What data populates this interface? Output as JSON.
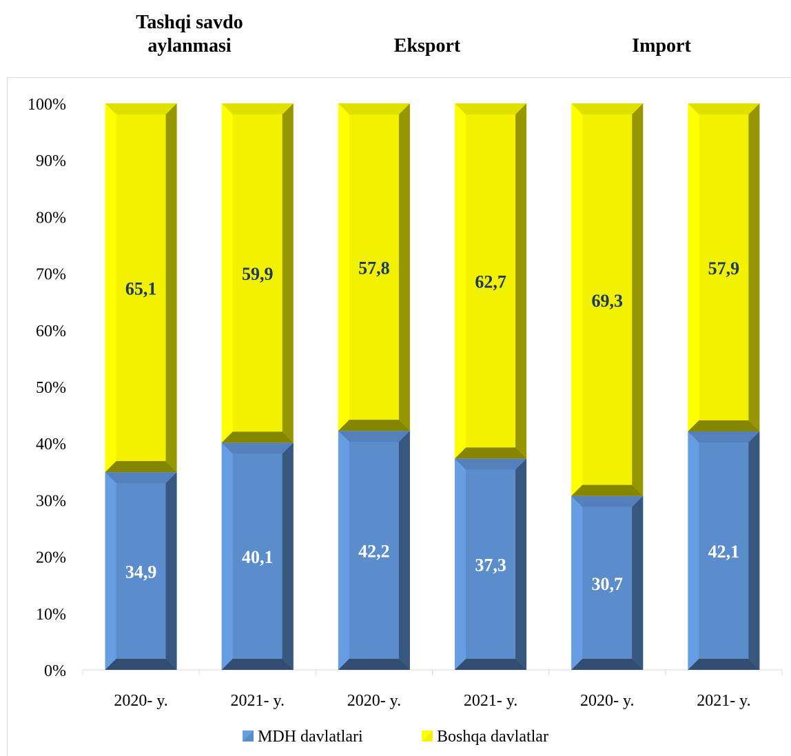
{
  "group_titles": [
    {
      "id": "trade",
      "text": "Tashqi savdo aylanmasi"
    },
    {
      "id": "export",
      "text": "Eksport"
    },
    {
      "id": "import",
      "text": "Import"
    }
  ],
  "chart_data": {
    "type": "bar",
    "stacked": true,
    "percent_stacked": true,
    "categories": [
      "2020- y.",
      "2021- y.",
      "2020- y.",
      "2021- y.",
      "2020- y.",
      "2021- y."
    ],
    "groups": [
      "Tashqi savdo aylanmasi",
      "Tashqi savdo aylanmasi",
      "Eksport",
      "Eksport",
      "Import",
      "Import"
    ],
    "series": [
      {
        "name": "MDH davlatlari",
        "color": "#5b8ccb",
        "labels": [
          "34,9",
          "40,1",
          "42,2",
          "37,3",
          "30,7",
          "42,1"
        ],
        "values": [
          34.9,
          40.1,
          42.2,
          37.3,
          30.7,
          42.1
        ]
      },
      {
        "name": "Boshqa davlatlar",
        "color": "#f2f200",
        "labels": [
          "65,1",
          "59,9",
          "57,8",
          "62,7",
          "69,3",
          "57,9"
        ],
        "values": [
          65.1,
          59.9,
          57.8,
          62.7,
          69.3,
          57.9
        ]
      }
    ],
    "y_ticks": [
      "0%",
      "10%",
      "20%",
      "30%",
      "40%",
      "50%",
      "60%",
      "70%",
      "80%",
      "90%",
      "100%"
    ],
    "ylim": [
      0,
      100
    ],
    "grid": false,
    "legend_position": "bottom"
  }
}
